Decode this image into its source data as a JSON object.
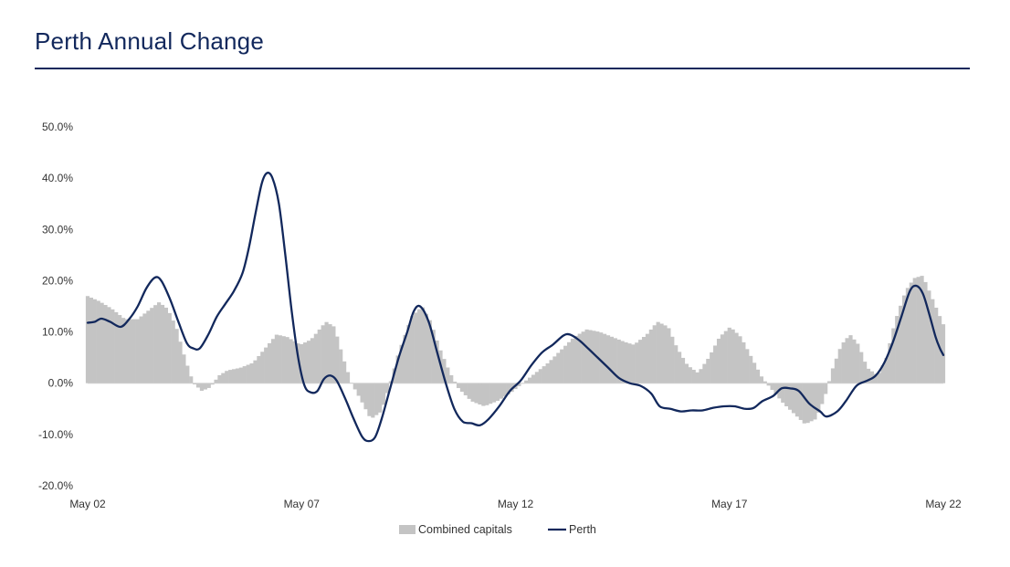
{
  "page": {
    "title": "Perth Annual Change"
  },
  "colors": {
    "accent": "#12285c",
    "bars": "#c4c4c4",
    "title": "#12285c"
  },
  "chart_data": {
    "type": "area",
    "title": "Perth Annual Change",
    "xlabel": "",
    "ylabel": "",
    "x_range": [
      2002.33,
      2022.33
    ],
    "x_ticks": [
      {
        "x": 2002.33,
        "label": "May 02"
      },
      {
        "x": 2007.33,
        "label": "May 07"
      },
      {
        "x": 2012.33,
        "label": "May 12"
      },
      {
        "x": 2017.33,
        "label": "May 17"
      },
      {
        "x": 2022.33,
        "label": "May 22"
      }
    ],
    "ylim": [
      -20,
      50
    ],
    "y_ticks": [
      {
        "y": 50,
        "label": "50.0%"
      },
      {
        "y": 40,
        "label": "40.0%"
      },
      {
        "y": 30,
        "label": "30.0%"
      },
      {
        "y": 20,
        "label": "20.0%"
      },
      {
        "y": 10,
        "label": "10.0%"
      },
      {
        "y": 0,
        "label": "0.0%"
      },
      {
        "y": -10,
        "label": "-10.0%"
      },
      {
        "y": -20,
        "label": "-20.0%"
      }
    ],
    "grid": false,
    "legend_position": "bottom-center",
    "series": [
      {
        "name": "Combined capitals",
        "type": "bar",
        "color": "#c4c4c4",
        "points": [
          [
            2002.33,
            17.0
          ],
          [
            2002.6,
            16.0
          ],
          [
            2002.9,
            14.5
          ],
          [
            2003.2,
            12.5
          ],
          [
            2003.5,
            12.5
          ],
          [
            2003.8,
            14.5
          ],
          [
            2004.0,
            15.8
          ],
          [
            2004.2,
            14.5
          ],
          [
            2004.4,
            11.0
          ],
          [
            2004.6,
            5.0
          ],
          [
            2004.8,
            0.0
          ],
          [
            2005.0,
            -1.5
          ],
          [
            2005.2,
            -0.8
          ],
          [
            2005.4,
            1.5
          ],
          [
            2005.6,
            2.5
          ],
          [
            2005.9,
            3.0
          ],
          [
            2006.2,
            4.0
          ],
          [
            2006.5,
            7.0
          ],
          [
            2006.75,
            9.5
          ],
          [
            2007.0,
            9.0
          ],
          [
            2007.3,
            7.5
          ],
          [
            2007.55,
            8.5
          ],
          [
            2007.9,
            12.0
          ],
          [
            2008.1,
            11.0
          ],
          [
            2008.3,
            5.0
          ],
          [
            2008.5,
            0.0
          ],
          [
            2008.7,
            -3.0
          ],
          [
            2008.95,
            -7.0
          ],
          [
            2009.2,
            -5.5
          ],
          [
            2009.4,
            0.0
          ],
          [
            2009.6,
            6.0
          ],
          [
            2009.9,
            13.0
          ],
          [
            2010.15,
            15.0
          ],
          [
            2010.35,
            12.0
          ],
          [
            2010.55,
            7.0
          ],
          [
            2010.8,
            2.0
          ],
          [
            2011.0,
            -1.0
          ],
          [
            2011.3,
            -3.5
          ],
          [
            2011.6,
            -4.5
          ],
          [
            2011.9,
            -3.5
          ],
          [
            2012.2,
            -2.0
          ],
          [
            2012.5,
            0.0
          ],
          [
            2012.8,
            2.0
          ],
          [
            2013.1,
            4.0
          ],
          [
            2013.4,
            6.5
          ],
          [
            2013.7,
            9.0
          ],
          [
            2014.0,
            10.5
          ],
          [
            2014.3,
            10.0
          ],
          [
            2014.6,
            9.0
          ],
          [
            2014.9,
            8.0
          ],
          [
            2015.1,
            7.5
          ],
          [
            2015.4,
            9.5
          ],
          [
            2015.65,
            12.0
          ],
          [
            2015.9,
            11.0
          ],
          [
            2016.1,
            7.0
          ],
          [
            2016.35,
            3.5
          ],
          [
            2016.6,
            2.0
          ],
          [
            2016.85,
            5.0
          ],
          [
            2017.1,
            9.0
          ],
          [
            2017.35,
            11.0
          ],
          [
            2017.6,
            9.0
          ],
          [
            2017.85,
            5.0
          ],
          [
            2018.1,
            1.0
          ],
          [
            2018.35,
            -1.5
          ],
          [
            2018.6,
            -4.0
          ],
          [
            2018.85,
            -6.0
          ],
          [
            2019.1,
            -8.0
          ],
          [
            2019.35,
            -7.0
          ],
          [
            2019.55,
            -3.0
          ],
          [
            2019.75,
            3.0
          ],
          [
            2019.95,
            7.5
          ],
          [
            2020.15,
            9.5
          ],
          [
            2020.35,
            7.5
          ],
          [
            2020.55,
            3.0
          ],
          [
            2020.8,
            1.5
          ],
          [
            2021.0,
            5.0
          ],
          [
            2021.2,
            12.0
          ],
          [
            2021.45,
            18.0
          ],
          [
            2021.65,
            20.5
          ],
          [
            2021.85,
            21.0
          ],
          [
            2022.0,
            18.0
          ],
          [
            2022.2,
            14.0
          ],
          [
            2022.33,
            11.5
          ]
        ]
      },
      {
        "name": "Perth",
        "type": "line",
        "color": "#12285c",
        "points": [
          [
            2002.33,
            11.8
          ],
          [
            2002.5,
            12.0
          ],
          [
            2002.65,
            12.6
          ],
          [
            2002.85,
            12.0
          ],
          [
            2003.1,
            11.0
          ],
          [
            2003.3,
            12.5
          ],
          [
            2003.5,
            15.0
          ],
          [
            2003.7,
            18.5
          ],
          [
            2003.9,
            20.6
          ],
          [
            2004.05,
            20.0
          ],
          [
            2004.25,
            16.5
          ],
          [
            2004.45,
            12.0
          ],
          [
            2004.65,
            7.8
          ],
          [
            2004.8,
            6.8
          ],
          [
            2004.95,
            6.8
          ],
          [
            2005.15,
            9.5
          ],
          [
            2005.35,
            13.0
          ],
          [
            2005.55,
            15.5
          ],
          [
            2005.75,
            18.0
          ],
          [
            2005.95,
            21.5
          ],
          [
            2006.1,
            26.5
          ],
          [
            2006.25,
            33.0
          ],
          [
            2006.4,
            39.0
          ],
          [
            2006.52,
            41.0
          ],
          [
            2006.65,
            40.0
          ],
          [
            2006.8,
            35.0
          ],
          [
            2006.95,
            25.0
          ],
          [
            2007.1,
            14.0
          ],
          [
            2007.25,
            5.0
          ],
          [
            2007.4,
            -0.5
          ],
          [
            2007.55,
            -1.8
          ],
          [
            2007.7,
            -1.5
          ],
          [
            2007.85,
            0.8
          ],
          [
            2008.0,
            1.5
          ],
          [
            2008.15,
            0.5
          ],
          [
            2008.35,
            -3.0
          ],
          [
            2008.55,
            -7.0
          ],
          [
            2008.75,
            -10.5
          ],
          [
            2008.9,
            -11.3
          ],
          [
            2009.05,
            -10.5
          ],
          [
            2009.2,
            -7.0
          ],
          [
            2009.4,
            -1.0
          ],
          [
            2009.6,
            5.0
          ],
          [
            2009.8,
            10.0
          ],
          [
            2009.95,
            14.0
          ],
          [
            2010.1,
            15.0
          ],
          [
            2010.3,
            12.0
          ],
          [
            2010.5,
            6.0
          ],
          [
            2010.7,
            0.0
          ],
          [
            2010.9,
            -5.0
          ],
          [
            2011.1,
            -7.5
          ],
          [
            2011.3,
            -7.8
          ],
          [
            2011.5,
            -8.2
          ],
          [
            2011.7,
            -7.0
          ],
          [
            2011.95,
            -4.5
          ],
          [
            2012.2,
            -1.5
          ],
          [
            2012.45,
            0.5
          ],
          [
            2012.7,
            3.5
          ],
          [
            2012.95,
            6.0
          ],
          [
            2013.2,
            7.5
          ],
          [
            2013.45,
            9.3
          ],
          [
            2013.6,
            9.5
          ],
          [
            2013.8,
            8.5
          ],
          [
            2014.0,
            7.0
          ],
          [
            2014.25,
            5.0
          ],
          [
            2014.5,
            3.0
          ],
          [
            2014.75,
            1.0
          ],
          [
            2015.0,
            0.0
          ],
          [
            2015.25,
            -0.5
          ],
          [
            2015.5,
            -2.0
          ],
          [
            2015.7,
            -4.5
          ],
          [
            2015.95,
            -5.0
          ],
          [
            2016.2,
            -5.5
          ],
          [
            2016.45,
            -5.3
          ],
          [
            2016.7,
            -5.3
          ],
          [
            2016.95,
            -4.8
          ],
          [
            2017.2,
            -4.5
          ],
          [
            2017.45,
            -4.5
          ],
          [
            2017.7,
            -5.0
          ],
          [
            2017.9,
            -4.8
          ],
          [
            2018.1,
            -3.5
          ],
          [
            2018.35,
            -2.5
          ],
          [
            2018.55,
            -1.0
          ],
          [
            2018.75,
            -1.0
          ],
          [
            2018.95,
            -1.5
          ],
          [
            2019.2,
            -4.0
          ],
          [
            2019.45,
            -5.5
          ],
          [
            2019.6,
            -6.5
          ],
          [
            2019.85,
            -5.5
          ],
          [
            2020.05,
            -3.5
          ],
          [
            2020.3,
            -0.5
          ],
          [
            2020.55,
            0.5
          ],
          [
            2020.75,
            1.5
          ],
          [
            2020.95,
            4.0
          ],
          [
            2021.15,
            8.0
          ],
          [
            2021.35,
            13.0
          ],
          [
            2021.55,
            18.0
          ],
          [
            2021.7,
            19.0
          ],
          [
            2021.85,
            17.5
          ],
          [
            2022.0,
            13.5
          ],
          [
            2022.15,
            9.0
          ],
          [
            2022.25,
            6.8
          ],
          [
            2022.33,
            5.5
          ]
        ]
      }
    ]
  }
}
